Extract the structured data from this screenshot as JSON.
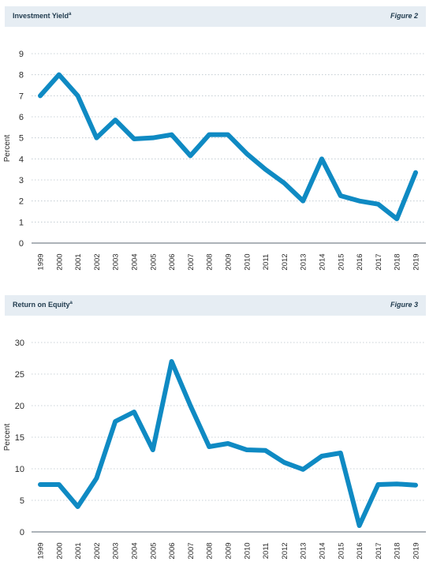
{
  "colors": {
    "series": "#0f8ac3",
    "header_bg": "#e6edf3"
  },
  "chart_data": [
    {
      "type": "line",
      "title": "Investment Yield",
      "title_note": "a",
      "figure_label": "Figure 2",
      "xlabel": "",
      "ylabel": "Percent",
      "ylim": [
        0,
        9
      ],
      "yticks": [
        0,
        1,
        2,
        3,
        4,
        5,
        6,
        7,
        8,
        9
      ],
      "grid": true,
      "categories": [
        "1999",
        "2000",
        "2001",
        "2002",
        "2003",
        "2004",
        "2005",
        "2006",
        "2007",
        "2008",
        "2009",
        "2010",
        "2011",
        "2012",
        "2013",
        "2014",
        "2015",
        "2016",
        "2017",
        "2018",
        "2019"
      ],
      "values": [
        7.0,
        8.0,
        7.0,
        5.0,
        5.85,
        4.95,
        5.0,
        5.15,
        4.15,
        5.15,
        5.15,
        4.25,
        3.5,
        2.85,
        2.0,
        4.0,
        2.25,
        2.0,
        1.85,
        1.15,
        3.35
      ]
    },
    {
      "type": "line",
      "title": "Return on Equity",
      "title_note": "a",
      "figure_label": "Figure 3",
      "xlabel": "",
      "ylabel": "Percent",
      "ylim": [
        0,
        30
      ],
      "yticks": [
        0,
        5,
        10,
        15,
        20,
        25,
        30
      ],
      "grid": true,
      "categories": [
        "1999",
        "2000",
        "2001",
        "2002",
        "2003",
        "2004",
        "2005",
        "2006",
        "2007",
        "2008",
        "2009",
        "2010",
        "2011",
        "2012",
        "2013",
        "2014",
        "2015",
        "2016",
        "2017",
        "2018",
        "2019"
      ],
      "values": [
        7.5,
        7.5,
        4.0,
        8.5,
        17.5,
        19.0,
        13.0,
        27.0,
        20.0,
        13.5,
        14.0,
        13.0,
        12.9,
        11.0,
        9.9,
        12.0,
        12.5,
        1.0,
        7.5,
        7.6,
        7.4
      ]
    }
  ]
}
